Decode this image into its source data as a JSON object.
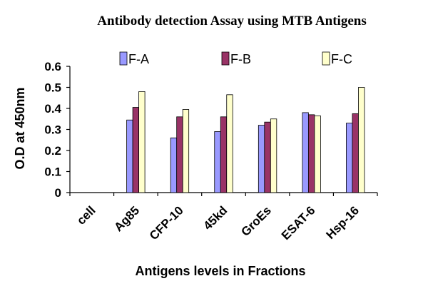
{
  "chart_data": {
    "type": "bar",
    "title": "Antibody detection  Assay using MTB  Antigens",
    "xlabel": "Antigens levels in Fractions",
    "ylabel": "O.D at 450nm",
    "categories": [
      "cell",
      "Ag85",
      "CFP-10",
      "45kd",
      "GroEs",
      "ESAT-6",
      "Hsp-16"
    ],
    "ylim": [
      0,
      0.6
    ],
    "yticks": [
      "0",
      "0.1",
      "0.2",
      "0.3",
      "0.4",
      "0.5",
      "0.6"
    ],
    "grid": false,
    "legend_position": "top",
    "series": [
      {
        "name": "F-A",
        "color": "#9999ff",
        "values": [
          0,
          0.345,
          0.26,
          0.29,
          0.32,
          0.38,
          0.33
        ]
      },
      {
        "name": "F-B",
        "color": "#993366",
        "values": [
          0,
          0.405,
          0.36,
          0.36,
          0.335,
          0.37,
          0.375
        ]
      },
      {
        "name": "F-C",
        "color": "#ffffcc",
        "values": [
          0,
          0.48,
          0.395,
          0.465,
          0.35,
          0.365,
          0.5
        ]
      }
    ]
  }
}
